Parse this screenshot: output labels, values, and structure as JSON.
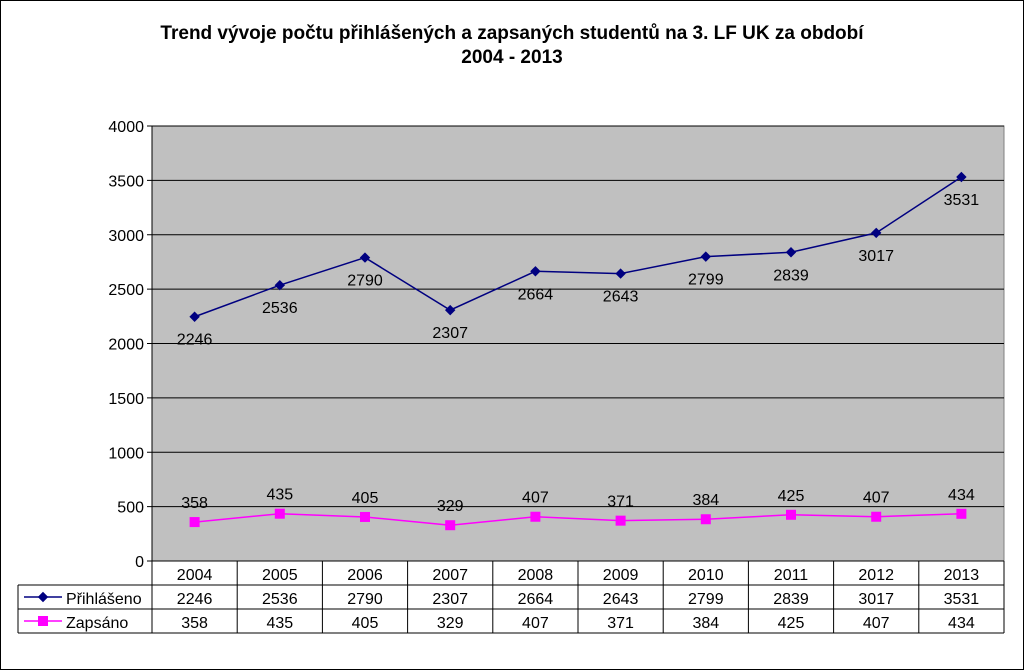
{
  "chart_data": {
    "type": "line",
    "title_line1": "Trend vývoje počtu přihlášených a zapsaných studentů na 3. LF UK za období",
    "title_line2": "2004 - 2013",
    "categories": [
      "2004",
      "2005",
      "2006",
      "2007",
      "2008",
      "2009",
      "2010",
      "2011",
      "2012",
      "2013"
    ],
    "series": [
      {
        "name": "Přihlášeno",
        "color": "#000080",
        "marker": "diamond",
        "values": [
          2246,
          2536,
          2790,
          2307,
          2664,
          2643,
          2799,
          2839,
          3017,
          3531
        ]
      },
      {
        "name": "Zapsáno",
        "color": "#FF00FF",
        "marker": "square",
        "values": [
          358,
          435,
          405,
          329,
          407,
          371,
          384,
          425,
          407,
          434
        ]
      }
    ],
    "ylim": [
      0,
      4000
    ],
    "yticks": [
      0,
      500,
      1000,
      1500,
      2000,
      2500,
      3000,
      3500,
      4000
    ],
    "grid": true,
    "plot_background": "#C0C0C0",
    "legend": "data-table-below"
  }
}
